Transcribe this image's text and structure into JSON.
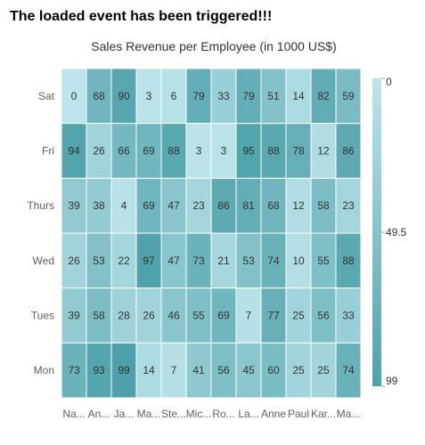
{
  "page": {
    "event_message": "The loaded event has been triggered!!!"
  },
  "chart_data": {
    "type": "heatmap",
    "title": "Sales Revenue per Employee (in 1000 US$)",
    "x_categories": [
      "Na...",
      "An...",
      "Ja...",
      "Ma...",
      "Ste...",
      "Mic...",
      "Ro...",
      "La...",
      "Anne",
      "Paul",
      "Kar...",
      "Ma..."
    ],
    "y_categories": [
      "Sat",
      "Fri",
      "Thurs",
      "Wed",
      "Tues",
      "Mon"
    ],
    "values": [
      [
        0,
        68,
        90,
        3,
        6,
        79,
        33,
        79,
        51,
        14,
        82,
        59
      ],
      [
        94,
        26,
        66,
        69,
        88,
        3,
        3,
        95,
        88,
        78,
        12,
        86
      ],
      [
        39,
        38,
        4,
        69,
        47,
        23,
        86,
        81,
        68,
        12,
        58,
        23
      ],
      [
        26,
        53,
        22,
        97,
        47,
        73,
        21,
        53,
        74,
        10,
        55,
        88
      ],
      [
        39,
        58,
        28,
        26,
        46,
        55,
        69,
        7,
        77,
        25,
        56,
        33
      ],
      [
        73,
        93,
        99,
        14,
        7,
        41,
        56,
        45,
        60,
        25,
        25,
        74
      ]
    ],
    "value_range": [
      0,
      99
    ],
    "legend": {
      "placement": "right",
      "labels": [
        "0",
        "49.5",
        "99"
      ]
    },
    "colors": {
      "low": "#BDE5EB",
      "high": "#4EA1AA",
      "grid_line": "#ffffff",
      "text": "#333333",
      "axis_text": "#5f5f5f"
    }
  }
}
